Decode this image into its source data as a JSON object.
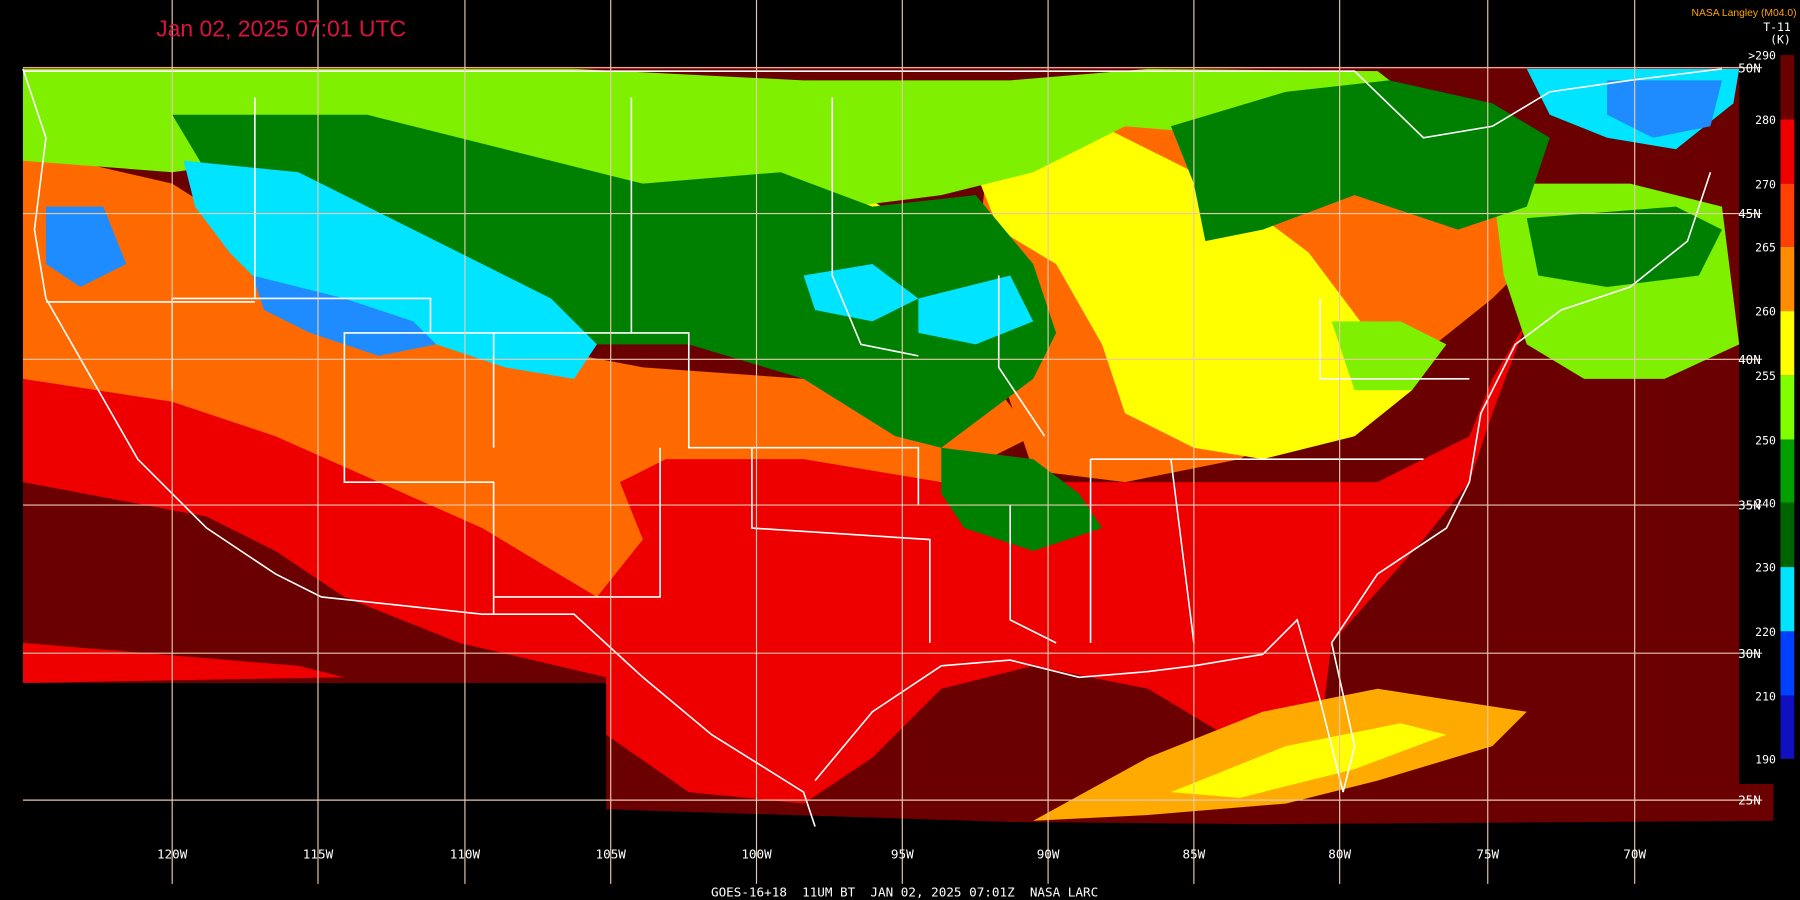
{
  "header": {
    "title": "Jan 02, 2025 07:01 UTC",
    "credit": "NASA Langley (M04.0)"
  },
  "colorbar": {
    "product": "T-11",
    "unit": "(K)",
    "labels": [
      ">290",
      "280",
      "270",
      "265",
      "260",
      "255",
      "250",
      "240",
      "230",
      "220",
      "210",
      "190"
    ]
  },
  "grid": {
    "latitudes": [
      "50N",
      "45N",
      "40N",
      "35N",
      "30N",
      "25N"
    ],
    "longitudes": [
      "120W",
      "115W",
      "110W",
      "105W",
      "100W",
      "95W",
      "90W",
      "85W",
      "80W",
      "75W",
      "70W"
    ]
  },
  "footer": {
    "caption": "GOES-16+18  11UM BT  JAN 02, 2025 07:01Z  NASA LARC"
  }
}
